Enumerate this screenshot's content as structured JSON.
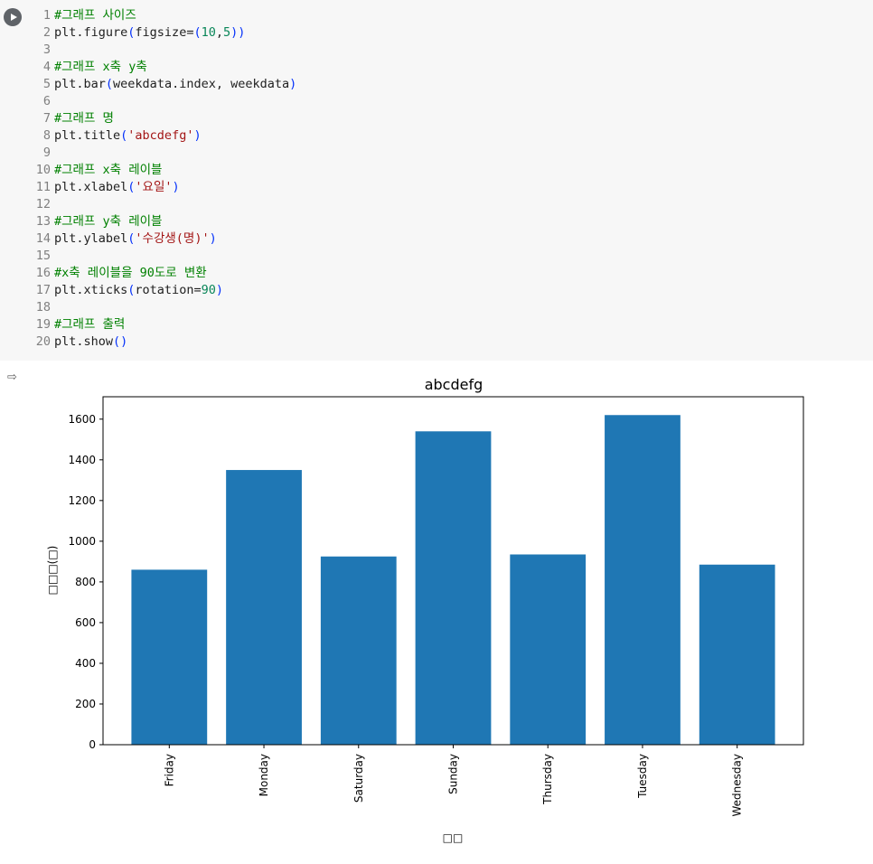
{
  "code_cell": {
    "lines": [
      {
        "num": "1",
        "tokens": [
          {
            "t": "#그래프 사이즈",
            "c": "comment"
          }
        ]
      },
      {
        "num": "2",
        "tokens": [
          {
            "t": "plt.figure",
            "c": "plain"
          },
          {
            "t": "(",
            "c": "paren"
          },
          {
            "t": "figsize=",
            "c": "plain"
          },
          {
            "t": "(",
            "c": "paren"
          },
          {
            "t": "10",
            "c": "number"
          },
          {
            "t": ",",
            "c": "plain"
          },
          {
            "t": "5",
            "c": "number"
          },
          {
            "t": "))",
            "c": "paren"
          }
        ]
      },
      {
        "num": "3",
        "tokens": []
      },
      {
        "num": "4",
        "tokens": [
          {
            "t": "#그래프 x축 y축",
            "c": "comment"
          }
        ]
      },
      {
        "num": "5",
        "tokens": [
          {
            "t": "plt.bar",
            "c": "plain"
          },
          {
            "t": "(",
            "c": "paren"
          },
          {
            "t": "weekdata.index, weekdata",
            "c": "plain"
          },
          {
            "t": ")",
            "c": "paren"
          }
        ]
      },
      {
        "num": "6",
        "tokens": []
      },
      {
        "num": "7",
        "tokens": [
          {
            "t": "#그래프 명",
            "c": "comment"
          }
        ]
      },
      {
        "num": "8",
        "tokens": [
          {
            "t": "plt.title",
            "c": "plain"
          },
          {
            "t": "(",
            "c": "paren"
          },
          {
            "t": "'abcdefg'",
            "c": "string"
          },
          {
            "t": ")",
            "c": "paren"
          }
        ]
      },
      {
        "num": "9",
        "tokens": []
      },
      {
        "num": "10",
        "tokens": [
          {
            "t": "#그래프 x축 레이블",
            "c": "comment"
          }
        ]
      },
      {
        "num": "11",
        "tokens": [
          {
            "t": "plt.xlabel",
            "c": "plain"
          },
          {
            "t": "(",
            "c": "paren"
          },
          {
            "t": "'요일'",
            "c": "string"
          },
          {
            "t": ")",
            "c": "paren"
          }
        ]
      },
      {
        "num": "12",
        "tokens": []
      },
      {
        "num": "13",
        "tokens": [
          {
            "t": "#그래프 y축 레이블",
            "c": "comment"
          }
        ]
      },
      {
        "num": "14",
        "tokens": [
          {
            "t": "plt.ylabel",
            "c": "plain"
          },
          {
            "t": "(",
            "c": "paren"
          },
          {
            "t": "'수강생(명)'",
            "c": "string"
          },
          {
            "t": ")",
            "c": "paren"
          }
        ]
      },
      {
        "num": "15",
        "tokens": []
      },
      {
        "num": "16",
        "tokens": [
          {
            "t": "#x축 레이블을 90도로 변환",
            "c": "comment"
          }
        ]
      },
      {
        "num": "17",
        "tokens": [
          {
            "t": "plt.xticks",
            "c": "plain"
          },
          {
            "t": "(",
            "c": "paren"
          },
          {
            "t": "rotation=",
            "c": "plain"
          },
          {
            "t": "90",
            "c": "number"
          },
          {
            "t": ")",
            "c": "paren"
          }
        ]
      },
      {
        "num": "18",
        "tokens": []
      },
      {
        "num": "19",
        "tokens": [
          {
            "t": "#그래프 출력",
            "c": "comment"
          }
        ]
      },
      {
        "num": "20",
        "tokens": [
          {
            "t": "plt.show",
            "c": "plain"
          },
          {
            "t": "()",
            "c": "paren"
          }
        ]
      }
    ]
  },
  "output": {
    "icon": "output-arrow-icon"
  },
  "colors": {
    "bar": "#1f77b4"
  },
  "chart_data": {
    "type": "bar",
    "title": "abcdefg",
    "xlabel": "□□",
    "ylabel": "□□□(□)",
    "categories": [
      "Friday",
      "Monday",
      "Saturday",
      "Sunday",
      "Thursday",
      "Tuesday",
      "Wednesday"
    ],
    "values": [
      860,
      1350,
      925,
      1540,
      935,
      1620,
      885
    ],
    "ylim": [
      0,
      1710
    ],
    "yticks": [
      0,
      200,
      400,
      600,
      800,
      1000,
      1200,
      1400,
      1600
    ],
    "grid": false
  }
}
